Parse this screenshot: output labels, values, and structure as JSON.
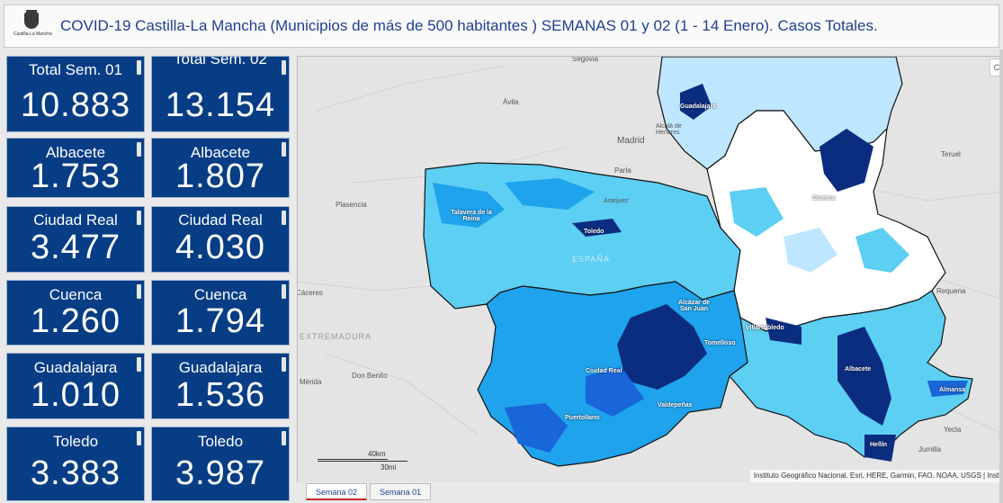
{
  "header": {
    "logo_text": "Castilla-La Mancha",
    "title": "COVID-19 Castilla-La Mancha (Municipios de más de 500 habitantes ) SEMANAS 01 y 02 (1 - 14 Enero). Casos Totales."
  },
  "tiles": [
    {
      "label": "Total Sem. 01",
      "value": "10.883"
    },
    {
      "label": "Total Sem. 02",
      "value": "13.154"
    },
    {
      "label": "Albacete",
      "value": "1.753"
    },
    {
      "label": "Albacete",
      "value": "1.807"
    },
    {
      "label": "Ciudad Real",
      "value": "3.477"
    },
    {
      "label": "Ciudad Real",
      "value": "4.030"
    },
    {
      "label": "Cuenca",
      "value": "1.260"
    },
    {
      "label": "Cuenca",
      "value": "1.794"
    },
    {
      "label": "Guadalajara",
      "value": "1.010"
    },
    {
      "label": "Guadalajara",
      "value": "1.536"
    },
    {
      "label": "Toledo",
      "value": "3.383"
    },
    {
      "label": "Toledo",
      "value": "3.987"
    }
  ],
  "map": {
    "places": {
      "segovia": "Segovia",
      "avila": "Ávila",
      "madrid": "Madrid",
      "alcala": "Alcalá de Henares",
      "parla": "Parla",
      "aranjuez": "Aranjuez",
      "teruel": "Teruel",
      "plasencia": "Plasencia",
      "caceres": "Cáceres",
      "requena": "Requena",
      "don_benito": "Don Benito",
      "merida": "Mérida",
      "yecla": "Yecla",
      "jumilla": "Jumilla"
    },
    "regions": {
      "espana": "ESPAÑA",
      "extremadura": "EXTREMADURA"
    },
    "cities": {
      "guadalajara": "Guadalajara",
      "cuenca": "Cuenca",
      "talavera": "Talavera de la Reina",
      "toledo": "Toledo",
      "alcazar": "Alcázar de San Juan",
      "tomelloso": "Tomelloso",
      "villarrobledo": "Villarrobledo",
      "ciudad_real": "Ciudad Real",
      "albacete": "Albacete",
      "almansa": "Almansa",
      "valdepenas": "Valdepeñas",
      "puertollano": "Puertollano",
      "hellin": "Hellín"
    },
    "scale_km": "40km",
    "scale_mi": "30mi",
    "attribution": "Instituto Geográfico Nacional, Esri, HERE, Garmin, FAO, NOAA, USGS | Insti",
    "corner_button": "C"
  },
  "tabs": [
    {
      "label": "Semana 02",
      "active": true
    },
    {
      "label": "Semana 01",
      "active": false
    }
  ],
  "colors": {
    "tile_bg": "#063d85",
    "title_blue": "#1f3f8f",
    "choropleth": [
      "#ffffff",
      "#bfe6ff",
      "#5ccff3",
      "#1ea3ec",
      "#1866d8",
      "#0b2d80"
    ]
  }
}
